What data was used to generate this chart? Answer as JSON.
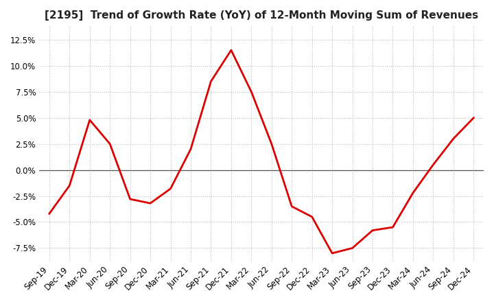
{
  "title": "[2195]  Trend of Growth Rate (YoY) of 12-Month Moving Sum of Revenues",
  "title_fontsize": 11,
  "title_color": "#222222",
  "background_color": "#ffffff",
  "plot_background_color": "#ffffff",
  "grid_color": "#bbbbbb",
  "grid_linestyle": ":",
  "line_color": "#dd0000",
  "line_width": 2.0,
  "ylim": [
    -8.8,
    13.8
  ],
  "yticks": [
    -7.5,
    -5.0,
    -2.5,
    0.0,
    2.5,
    5.0,
    7.5,
    10.0,
    12.5
  ],
  "x_labels": [
    "Sep-19",
    "Dec-19",
    "Mar-20",
    "Jun-20",
    "Sep-20",
    "Dec-20",
    "Mar-21",
    "Jun-21",
    "Sep-21",
    "Dec-21",
    "Mar-22",
    "Jun-22",
    "Sep-22",
    "Dec-22",
    "Mar-23",
    "Jun-23",
    "Sep-23",
    "Dec-23",
    "Mar-24",
    "Jun-24",
    "Sep-24",
    "Dec-24"
  ],
  "y_values": [
    -4.2,
    -1.5,
    4.8,
    2.5,
    -2.8,
    -3.2,
    -1.8,
    2.0,
    8.5,
    11.5,
    7.5,
    2.5,
    -3.5,
    -4.5,
    -8.0,
    -7.5,
    -5.8,
    -5.5,
    -2.2,
    0.5,
    3.0,
    5.0
  ]
}
